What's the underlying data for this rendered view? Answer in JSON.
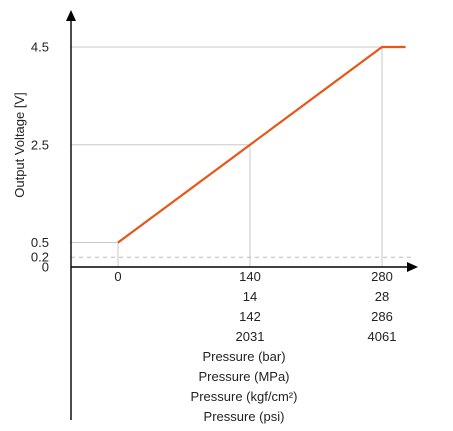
{
  "chart_data": {
    "type": "line",
    "title": "",
    "ylabel": "Output Voltage [V]",
    "xlabels": [
      "Pressure (bar)",
      "Pressure (MPa)",
      "Pressure (kgf/cm²)",
      "Pressure (psi)"
    ],
    "x_ticks": [
      {
        "bar": "0",
        "mpa": "",
        "kgf": "",
        "psi": ""
      },
      {
        "bar": "140",
        "mpa": "14",
        "kgf": "142",
        "psi": "2031"
      },
      {
        "bar": "280",
        "mpa": "28",
        "kgf": "286",
        "psi": "4061"
      }
    ],
    "y_ticks": [
      "0",
      "0.2",
      "0.5",
      "2.5",
      "4.5"
    ],
    "xlim": [
      -12,
      318
    ],
    "ylim": [
      0,
      5.2
    ],
    "series": [
      {
        "x": [
          0,
          280,
          305
        ],
        "y": [
          0.5,
          4.5,
          4.5
        ],
        "color": "#e8561a"
      }
    ],
    "reference_line": {
      "y": 0.2,
      "style": "dashed"
    },
    "grid": "drop-lines to points",
    "colors": {
      "line": "#e8561a",
      "grid": "#c8c8c8",
      "axis": "#000000"
    }
  }
}
